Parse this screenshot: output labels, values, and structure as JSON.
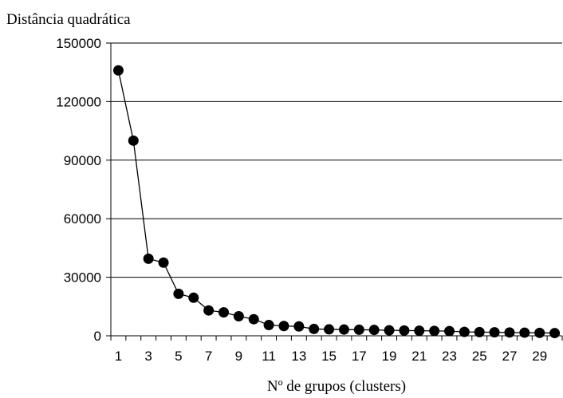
{
  "chart_data": {
    "type": "line",
    "title": "",
    "ylabel": "Distância quadrática",
    "xlabel": "Nº de grupos (clusters)",
    "ylim": [
      0,
      150000
    ],
    "y_ticks": [
      "0",
      "30000",
      "60000",
      "90000",
      "120000",
      "150000"
    ],
    "x_tick_labels": [
      "1",
      "3",
      "5",
      "7",
      "9",
      "11",
      "13",
      "15",
      "17",
      "19",
      "21",
      "23",
      "25",
      "27",
      "29"
    ],
    "grid": "horizontal",
    "legend": "none",
    "marker": "filled-circle",
    "colors": {
      "line": "#000000",
      "marker": "#000000",
      "grid": "#000000",
      "background": "#ffffff"
    },
    "x": [
      1,
      2,
      3,
      4,
      5,
      6,
      7,
      8,
      9,
      10,
      11,
      12,
      13,
      14,
      15,
      16,
      17,
      18,
      19,
      20,
      21,
      22,
      23,
      24,
      25,
      26,
      27,
      28,
      29,
      30
    ],
    "values": [
      136000,
      100000,
      39500,
      37500,
      21500,
      19500,
      13000,
      12000,
      10000,
      8500,
      5500,
      5000,
      4800,
      3500,
      3300,
      3200,
      3100,
      3000,
      2800,
      2700,
      2600,
      2500,
      2400,
      2000,
      1900,
      1800,
      1700,
      1600,
      1500,
      1400
    ]
  }
}
